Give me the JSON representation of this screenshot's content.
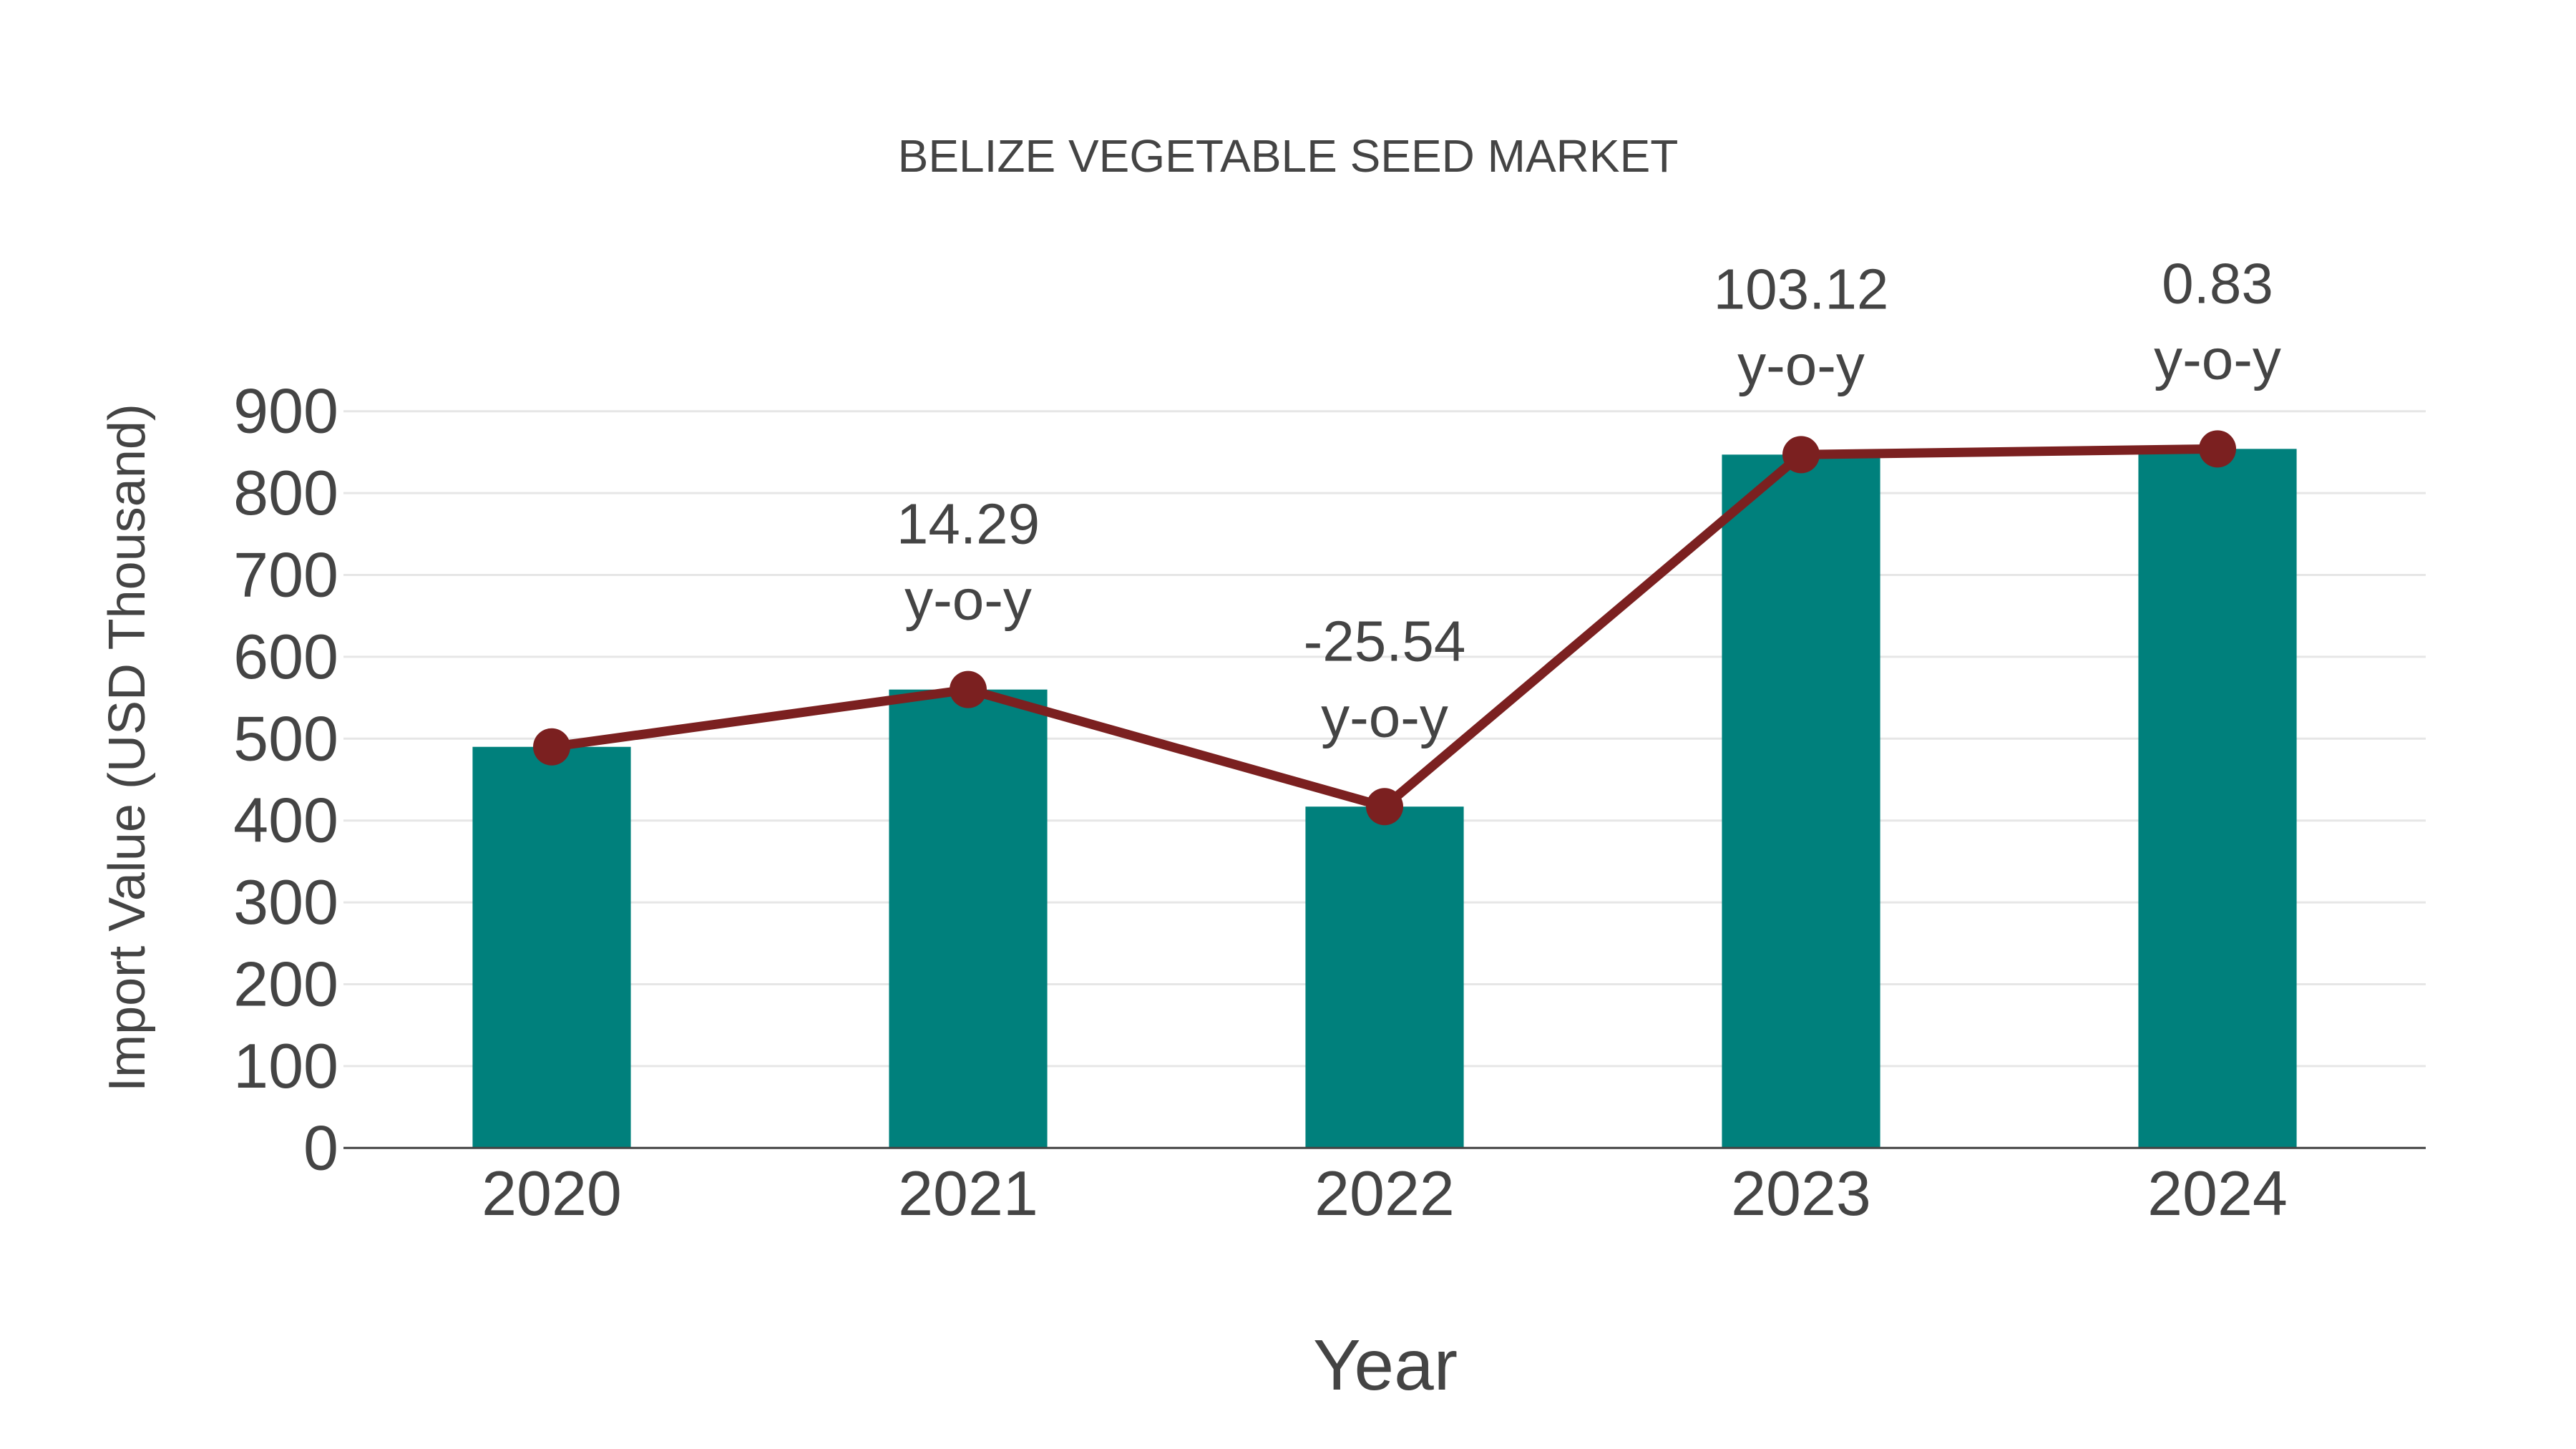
{
  "chart_data": {
    "type": "bar+line",
    "title": "BELIZE VEGETABLE SEED MARKET",
    "xlabel": "Year",
    "ylabel": "Import Value (USD Thousand)",
    "categories": [
      "2020",
      "2021",
      "2022",
      "2023",
      "2024"
    ],
    "series": [
      {
        "name": "Import Value (bar)",
        "type": "bar",
        "color": "#00807c",
        "values": [
          490,
          560,
          417,
          847,
          854
        ]
      },
      {
        "name": "Import Value (line)",
        "type": "line",
        "color": "#7b2020",
        "values": [
          490,
          560,
          417,
          847,
          854
        ]
      }
    ],
    "annotations": [
      {
        "category": "2021",
        "value": "14.29",
        "suffix": "y-o-y"
      },
      {
        "category": "2022",
        "value": "-25.54",
        "suffix": "y-o-y"
      },
      {
        "category": "2023",
        "value": "103.12",
        "suffix": "y-o-y"
      },
      {
        "category": "2024",
        "value": "0.83",
        "suffix": "y-o-y"
      }
    ],
    "yticks": [
      0,
      100,
      200,
      300,
      400,
      500,
      600,
      700,
      800,
      900
    ],
    "ylim": [
      0,
      900
    ],
    "grid": true,
    "legend": "none"
  },
  "colors": {
    "bar": "#00807c",
    "line": "#7b2020",
    "text": "#444444",
    "grid": "#e6e6e6",
    "axis": "#444444"
  }
}
